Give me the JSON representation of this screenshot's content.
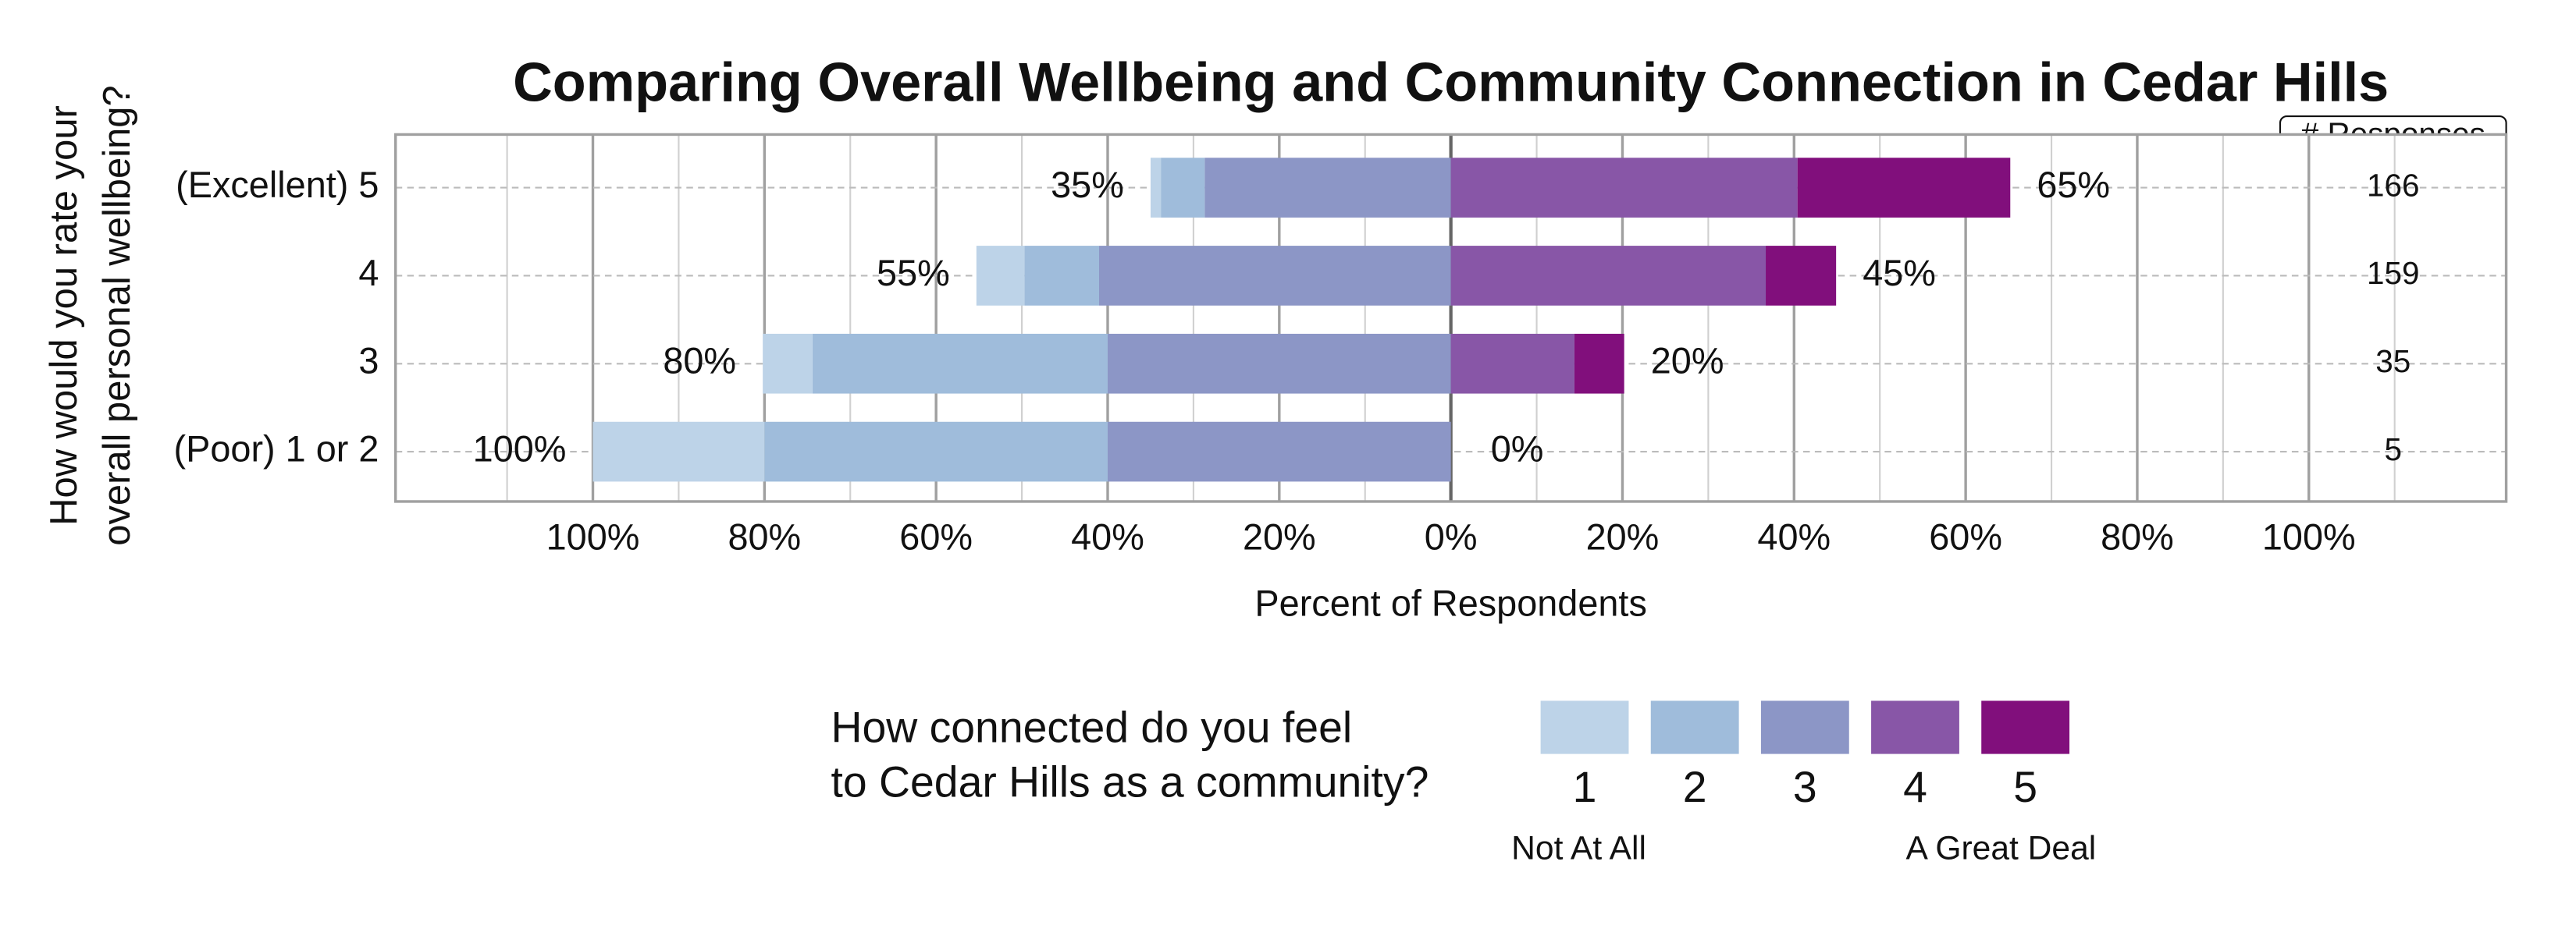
{
  "chart_data": {
    "type": "diverging_stacked_bar",
    "title": "Comparing Overall Wellbeing and Community Connection in Cedar Hills",
    "x_label": "Percent of Respondents",
    "y_label": [
      "How would you rate your",
      "overall personal wellbeing?"
    ],
    "categories": [
      "(Excellent) 5",
      "4",
      "3",
      "(Poor) 1 or 2"
    ],
    "series": [
      {
        "name": "1",
        "color": "#bdd3e8",
        "values": [
          -1.2,
          -5.6,
          -5.8,
          -20
        ]
      },
      {
        "name": "2",
        "color": "#9fbcdb",
        "values": [
          -5.1,
          -8.7,
          -34.4,
          -40
        ]
      },
      {
        "name": "3",
        "color": "#8c96c6",
        "values": [
          -28.7,
          -41,
          -40,
          -40
        ]
      },
      {
        "name": "4",
        "color": "#8856a7",
        "values": [
          40.4,
          36.7,
          14.4,
          0
        ]
      },
      {
        "name": "5",
        "color": "#810f7c",
        "values": [
          24.8,
          8.2,
          5.8,
          0
        ]
      }
    ],
    "left_total_labels": [
      "35%",
      "55%",
      "80%",
      "100%"
    ],
    "right_total_labels": [
      "65%",
      "45%",
      "20%",
      "0%"
    ],
    "responses_header": "# Responses",
    "responses": [
      166,
      159,
      35,
      5
    ],
    "legend_title": [
      "How connected do you feel",
      "to Cedar Hills as a community?"
    ],
    "legend_low_label": "Not At All",
    "legend_high_label": "A Great Deal",
    "xlim": [
      -123,
      123
    ],
    "xticks": [
      {
        "value": -100,
        "label": "100%"
      },
      {
        "value": -80,
        "label": "80%"
      },
      {
        "value": -60,
        "label": "60%"
      },
      {
        "value": -40,
        "label": "40%"
      },
      {
        "value": -20,
        "label": "20%"
      },
      {
        "value": 0,
        "label": "0%"
      },
      {
        "value": 20,
        "label": "20%"
      },
      {
        "value": 40,
        "label": "40%"
      },
      {
        "value": 60,
        "label": "60%"
      },
      {
        "value": 80,
        "label": "80%"
      },
      {
        "value": 100,
        "label": "100%"
      }
    ],
    "minor_xticks": [
      -110,
      -90,
      -70,
      -50,
      -30,
      -10,
      10,
      30,
      50,
      70,
      90,
      110
    ],
    "grid": true
  }
}
